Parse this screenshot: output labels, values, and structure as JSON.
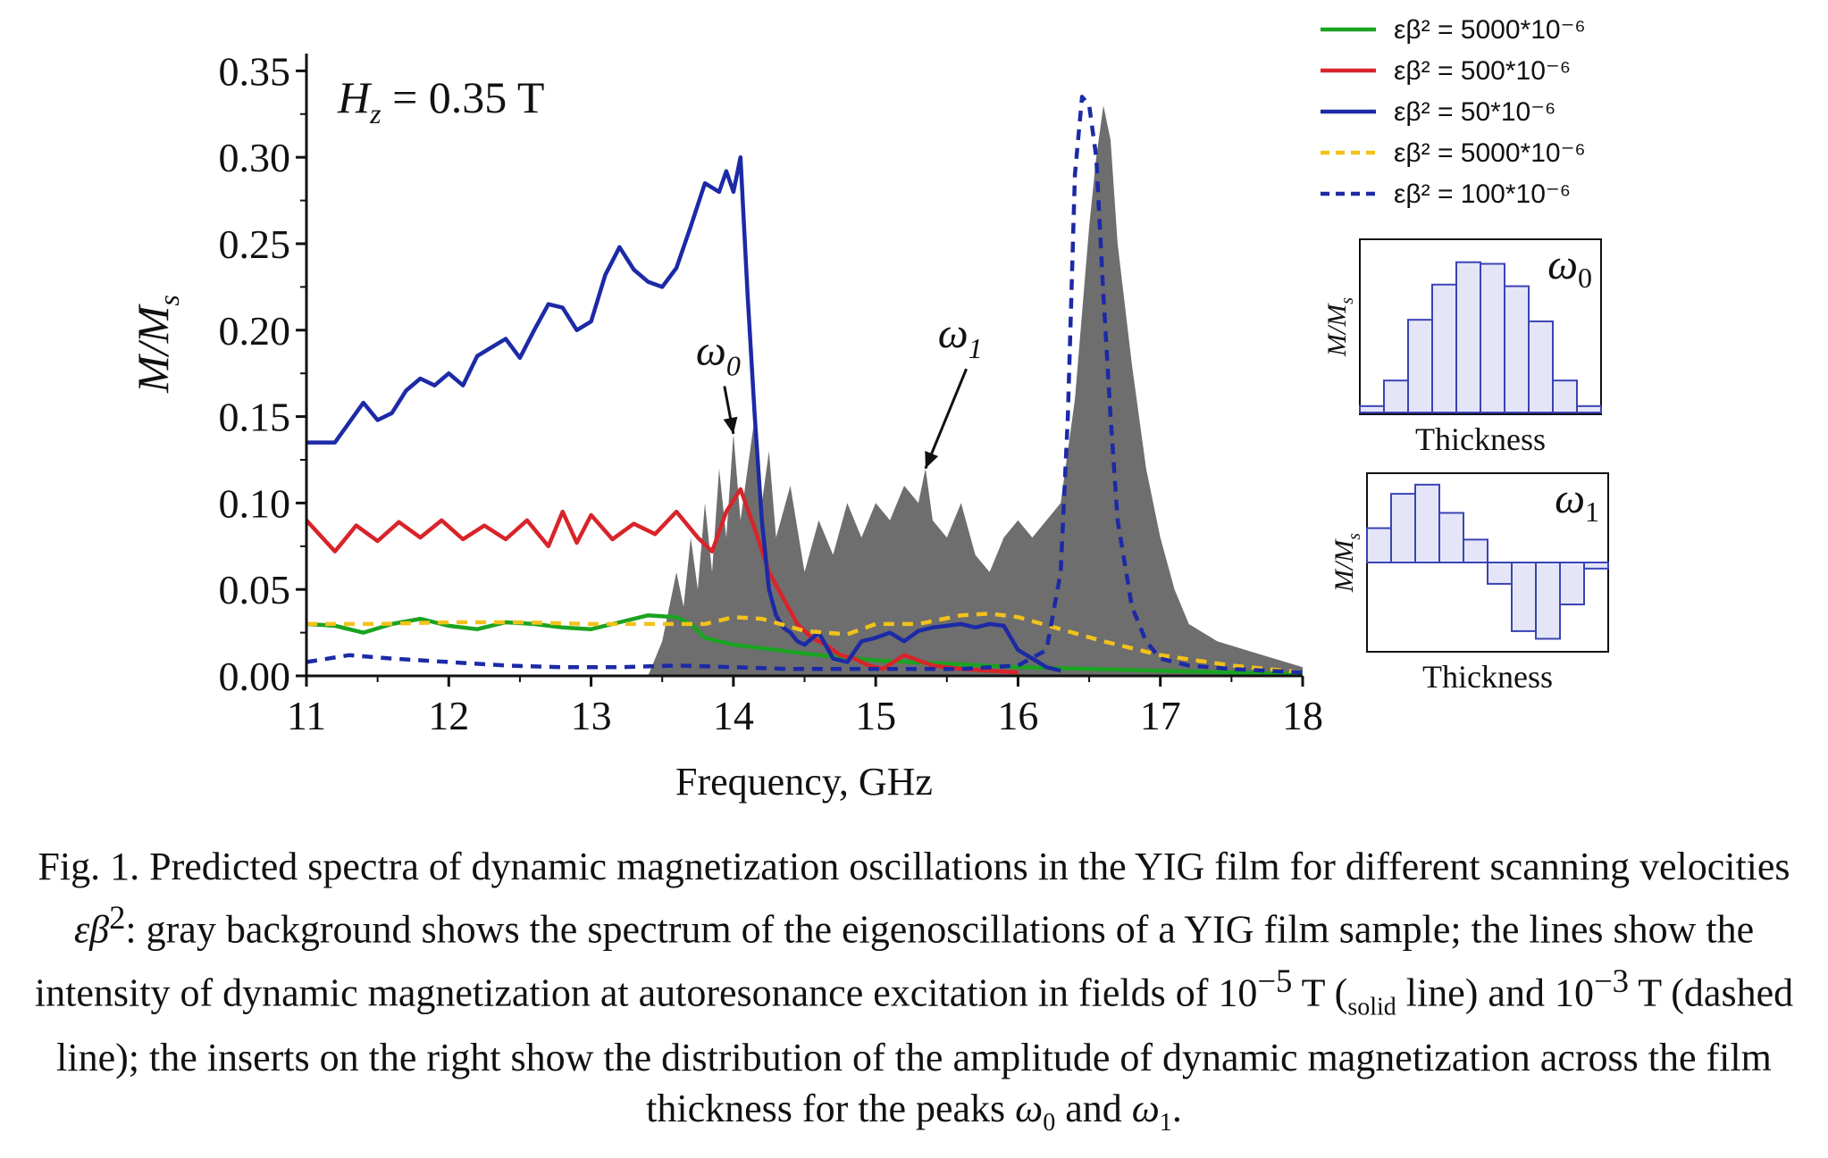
{
  "chart_data": [
    {
      "type": "line",
      "title": "",
      "annotation_field": {
        "symbol": "H",
        "subscript": "z",
        "rest": " = 0.35 T"
      },
      "xlabel": "Frequency, GHz",
      "ylabel": {
        "main": "M/M",
        "sub": "s"
      },
      "xlim": [
        11,
        18
      ],
      "ylim": [
        0,
        0.36
      ],
      "xticks": [
        11,
        12,
        13,
        14,
        15,
        16,
        17,
        18
      ],
      "yticks": [
        0.0,
        0.05,
        0.1,
        0.15,
        0.2,
        0.25,
        0.3,
        0.35
      ],
      "ytick_labels": [
        "0.00",
        "0.05",
        "0.10",
        "0.15",
        "0.20",
        "0.25",
        "0.30",
        "0.35"
      ],
      "xtick_labels": [
        "11",
        "12",
        "13",
        "14",
        "15",
        "16",
        "17",
        "18"
      ],
      "peak_labels": [
        {
          "symbol": "ω",
          "sub": "0",
          "text_x": 14.05,
          "text_y": 0.18,
          "arrow_to": [
            14.0,
            0.14
          ]
        },
        {
          "symbol": "ω",
          "sub": "1",
          "text_x": 15.75,
          "text_y": 0.19,
          "arrow_to": [
            15.35,
            0.12
          ]
        }
      ],
      "background_spectrum": {
        "name": "eigenoscillations",
        "color": "#6e6e6e",
        "x": [
          11.0,
          13.4,
          13.5,
          13.6,
          13.65,
          13.7,
          13.75,
          13.8,
          13.85,
          13.9,
          13.95,
          14.0,
          14.05,
          14.1,
          14.15,
          14.2,
          14.25,
          14.3,
          14.4,
          14.5,
          14.6,
          14.7,
          14.8,
          14.9,
          15.0,
          15.1,
          15.2,
          15.3,
          15.35,
          15.4,
          15.5,
          15.6,
          15.7,
          15.8,
          15.9,
          16.0,
          16.1,
          16.2,
          16.3,
          16.4,
          16.5,
          16.55,
          16.6,
          16.65,
          16.7,
          16.8,
          16.9,
          17.0,
          17.1,
          17.2,
          17.4,
          17.6,
          17.8,
          18.0
        ],
        "values": [
          0.0,
          0.0,
          0.02,
          0.06,
          0.04,
          0.08,
          0.05,
          0.1,
          0.06,
          0.12,
          0.08,
          0.14,
          0.09,
          0.12,
          0.15,
          0.1,
          0.13,
          0.08,
          0.11,
          0.06,
          0.09,
          0.07,
          0.1,
          0.08,
          0.1,
          0.09,
          0.11,
          0.1,
          0.12,
          0.09,
          0.08,
          0.1,
          0.07,
          0.06,
          0.08,
          0.09,
          0.08,
          0.09,
          0.1,
          0.16,
          0.26,
          0.3,
          0.33,
          0.31,
          0.25,
          0.18,
          0.12,
          0.08,
          0.05,
          0.03,
          0.02,
          0.015,
          0.01,
          0.005
        ]
      },
      "series": [
        {
          "name": "εβ² = 5000*10⁻⁶",
          "style": "solid",
          "color": "#1ba322",
          "x": [
            11.0,
            11.2,
            11.4,
            11.6,
            11.8,
            12.0,
            12.2,
            12.4,
            12.6,
            12.8,
            13.0,
            13.2,
            13.4,
            13.6,
            13.7,
            13.8,
            14.0,
            14.2,
            14.4,
            14.6,
            15.0,
            15.5,
            16.0,
            16.5,
            17.0,
            17.5,
            18.0
          ],
          "values": [
            0.03,
            0.029,
            0.025,
            0.03,
            0.033,
            0.029,
            0.027,
            0.031,
            0.03,
            0.028,
            0.027,
            0.031,
            0.035,
            0.034,
            0.03,
            0.022,
            0.018,
            0.016,
            0.014,
            0.012,
            0.009,
            0.007,
            0.005,
            0.004,
            0.003,
            0.002,
            0.001
          ]
        },
        {
          "name": "εβ² = 500*10⁻⁶",
          "style": "solid",
          "color": "#d8242a",
          "x": [
            11.0,
            11.2,
            11.35,
            11.5,
            11.65,
            11.8,
            11.95,
            12.1,
            12.25,
            12.4,
            12.55,
            12.7,
            12.8,
            12.9,
            13.0,
            13.15,
            13.3,
            13.45,
            13.6,
            13.75,
            13.85,
            13.95,
            14.05,
            14.15,
            14.25,
            14.35,
            14.45,
            14.55,
            14.65,
            14.75,
            14.85,
            14.95,
            15.05,
            15.2,
            15.4,
            15.6,
            15.8,
            16.0
          ],
          "values": [
            0.09,
            0.072,
            0.087,
            0.078,
            0.089,
            0.08,
            0.09,
            0.079,
            0.087,
            0.079,
            0.09,
            0.075,
            0.095,
            0.077,
            0.093,
            0.079,
            0.088,
            0.082,
            0.095,
            0.08,
            0.072,
            0.095,
            0.108,
            0.085,
            0.06,
            0.045,
            0.03,
            0.022,
            0.018,
            0.012,
            0.01,
            0.006,
            0.004,
            0.012,
            0.006,
            0.004,
            0.003,
            0.002
          ]
        },
        {
          "name": "εβ² = 50*10⁻⁶",
          "style": "solid",
          "color": "#1c2aa6",
          "x": [
            11.0,
            11.2,
            11.4,
            11.5,
            11.6,
            11.7,
            11.8,
            11.9,
            12.0,
            12.1,
            12.2,
            12.3,
            12.4,
            12.5,
            12.6,
            12.7,
            12.8,
            12.9,
            13.0,
            13.1,
            13.2,
            13.3,
            13.4,
            13.5,
            13.6,
            13.7,
            13.8,
            13.9,
            13.95,
            14.0,
            14.05,
            14.1,
            14.15,
            14.2,
            14.25,
            14.3,
            14.35,
            14.4,
            14.45,
            14.5,
            14.6,
            14.7,
            14.8,
            14.9,
            15.0,
            15.1,
            15.2,
            15.3,
            15.4,
            15.5,
            15.6,
            15.7,
            15.8,
            15.9,
            16.0,
            16.1,
            16.2,
            16.3
          ],
          "values": [
            0.135,
            0.135,
            0.158,
            0.148,
            0.152,
            0.165,
            0.172,
            0.168,
            0.175,
            0.168,
            0.185,
            0.19,
            0.195,
            0.184,
            0.2,
            0.215,
            0.213,
            0.2,
            0.205,
            0.232,
            0.248,
            0.235,
            0.228,
            0.225,
            0.236,
            0.26,
            0.285,
            0.28,
            0.292,
            0.28,
            0.3,
            0.22,
            0.15,
            0.09,
            0.05,
            0.035,
            0.028,
            0.025,
            0.02,
            0.018,
            0.025,
            0.01,
            0.008,
            0.02,
            0.022,
            0.025,
            0.02,
            0.026,
            0.028,
            0.029,
            0.03,
            0.028,
            0.03,
            0.029,
            0.015,
            0.01,
            0.005,
            0.003
          ]
        },
        {
          "name": "εβ² = 5000*10⁻⁶",
          "style": "dashed",
          "color": "#f2c21a",
          "x": [
            11.0,
            11.5,
            12.0,
            12.5,
            13.0,
            13.5,
            13.8,
            14.0,
            14.2,
            14.5,
            14.8,
            15.0,
            15.3,
            15.6,
            15.8,
            16.0,
            16.3,
            16.6,
            17.0,
            17.5,
            18.0
          ],
          "values": [
            0.03,
            0.03,
            0.031,
            0.031,
            0.03,
            0.03,
            0.03,
            0.034,
            0.033,
            0.026,
            0.024,
            0.03,
            0.03,
            0.035,
            0.036,
            0.034,
            0.027,
            0.02,
            0.012,
            0.006,
            0.002
          ]
        },
        {
          "name": "εβ² = 100*10⁻⁶",
          "style": "dashed",
          "color": "#1c2aa6",
          "x": [
            11.0,
            11.3,
            11.6,
            12.0,
            12.4,
            12.8,
            13.2,
            13.6,
            14.0,
            14.4,
            14.8,
            15.2,
            15.6,
            16.0,
            16.2,
            16.3,
            16.35,
            16.4,
            16.45,
            16.5,
            16.55,
            16.6,
            16.65,
            16.7,
            16.8,
            16.9,
            17.0,
            17.2,
            17.5,
            18.0
          ],
          "values": [
            0.008,
            0.012,
            0.01,
            0.008,
            0.006,
            0.005,
            0.005,
            0.006,
            0.005,
            0.004,
            0.004,
            0.004,
            0.004,
            0.006,
            0.015,
            0.06,
            0.15,
            0.29,
            0.335,
            0.33,
            0.3,
            0.22,
            0.15,
            0.09,
            0.04,
            0.02,
            0.01,
            0.006,
            0.004,
            0.002
          ]
        }
      ],
      "legend": {
        "placement": "top-right"
      }
    },
    {
      "type": "bar",
      "title_symbol": "ω",
      "title_sub": "0",
      "xlabel": "Thickness",
      "ylabel": {
        "main": "M/M",
        "sub": "s"
      },
      "color": "#3b43b4",
      "fill": "#e4e6f8",
      "values": [
        0.04,
        0.2,
        0.58,
        0.8,
        0.94,
        0.93,
        0.79,
        0.57,
        0.2,
        0.04
      ],
      "ylim": [
        0,
        1.05
      ]
    },
    {
      "type": "bar",
      "title_symbol": "ω",
      "title_sub": "1",
      "xlabel": "Thickness",
      "ylabel": {
        "main": "M/M",
        "sub": "s"
      },
      "color": "#3b43b4",
      "fill": "#e4e6f8",
      "values": [
        0.45,
        0.9,
        1.02,
        0.65,
        0.3,
        -0.28,
        -0.9,
        -1.0,
        -0.55,
        -0.08
      ],
      "ylim": [
        -1.1,
        1.1
      ]
    }
  ],
  "caption": {
    "part1": "Fig. 1. Predicted spectra of dynamic magnetization oscillations in the YIG film for different scanning velocities ",
    "var": "εβ",
    "var_sup": "2",
    "part2": ": gray background shows the spectrum of the eigenoscillations of a YIG film sample; the lines show the intensity of dynamic magnetization at autoresonance excitation in fields of 10",
    "exp1": "−5",
    "part3": " T (",
    "small": "solid",
    "part4": " line) and 10",
    "exp2": "−3",
    "part5": " T (dashed line); the inserts on the right show the distribution of the amplitude of dynamic magnetization across the film thickness for the peaks ",
    "w0": "ω",
    "w0_sub": "0",
    "and": " and ",
    "w1": "ω",
    "w1_sub": "1",
    "end": "."
  }
}
